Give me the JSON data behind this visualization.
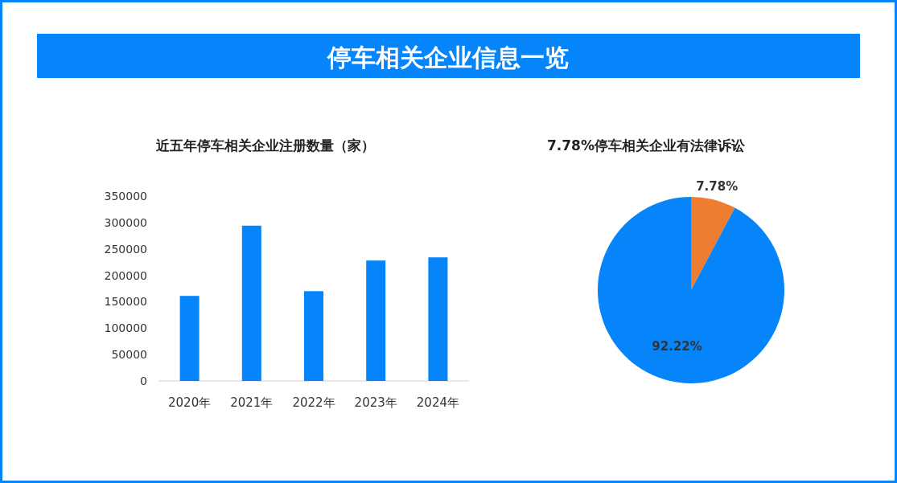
{
  "chart_data": [
    {
      "type": "other",
      "title": "停车相关企业信息一览"
    },
    {
      "type": "bar",
      "title": "近五年停车相关企业注册数量（家）",
      "categories": [
        "2020年",
        "2021年",
        "2022年",
        "2023年",
        "2024年"
      ],
      "values": [
        161000,
        294000,
        170000,
        228000,
        234000
      ],
      "color": "#0684fa",
      "ylim": [
        0,
        350000
      ],
      "yticks": [
        0,
        50000,
        100000,
        150000,
        200000,
        250000,
        300000,
        350000
      ]
    },
    {
      "type": "pie",
      "title": "7.78%停车相关企业有法律诉讼",
      "categories": [
        null,
        null
      ],
      "values": [
        7.78,
        92.22
      ],
      "colors": [
        "#ed7d31",
        "#0684fa"
      ],
      "value_labels": [
        "7.78%",
        "92.22%"
      ]
    }
  ]
}
